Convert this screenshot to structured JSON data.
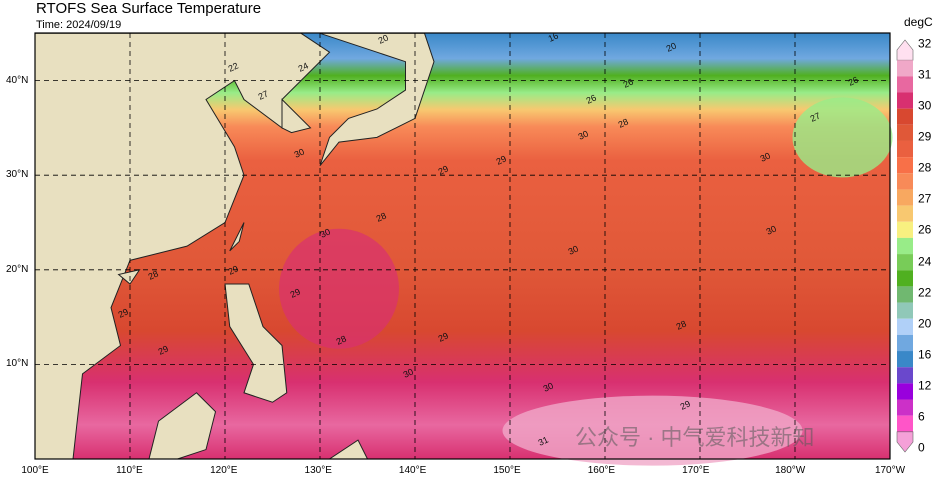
{
  "title": "RTOFS Sea Surface Temperature",
  "time": "Time: 2024/09/19",
  "colorbar": {
    "unit": "degC",
    "labels": [
      "32",
      "31",
      "30",
      "29",
      "28",
      "27",
      "26",
      "24",
      "22",
      "20",
      "16",
      "12",
      "6",
      "0"
    ],
    "colors": [
      "#ffe0f0",
      "#f0a8c8",
      "#e868a0",
      "#d83070",
      "#d84830",
      "#e05838",
      "#ea6040",
      "#f87048",
      "#f88a58",
      "#f8a860",
      "#f8c870",
      "#f8f080",
      "#98ec88",
      "#78cc58",
      "#50b020",
      "#70b870",
      "#90c8b8",
      "#b0d0f8",
      "#70a8e0",
      "#3a88c8",
      "#6a48cc",
      "#9900dd",
      "#cc30c8",
      "#ff55c8",
      "#f5a0d8"
    ]
  },
  "x_ticks": [
    "100°E",
    "110°E",
    "120°E",
    "130°E",
    "140°E",
    "150°E",
    "160°E",
    "170°E",
    "180°W",
    "170°W"
  ],
  "y_ticks": [
    "40°N",
    "30°N",
    "20°N",
    "10°N"
  ],
  "contour_labels": [
    "20",
    "22",
    "24",
    "26",
    "26",
    "27",
    "28",
    "28",
    "29",
    "29",
    "30",
    "30",
    "30",
    "30",
    "31",
    "28",
    "29",
    "29",
    "29",
    "28",
    "28",
    "29",
    "30",
    "30",
    "30",
    "30",
    "29",
    "29",
    "27",
    "26",
    "20",
    "16"
  ],
  "watermark": "公众号 · 中气爱科技新知"
}
